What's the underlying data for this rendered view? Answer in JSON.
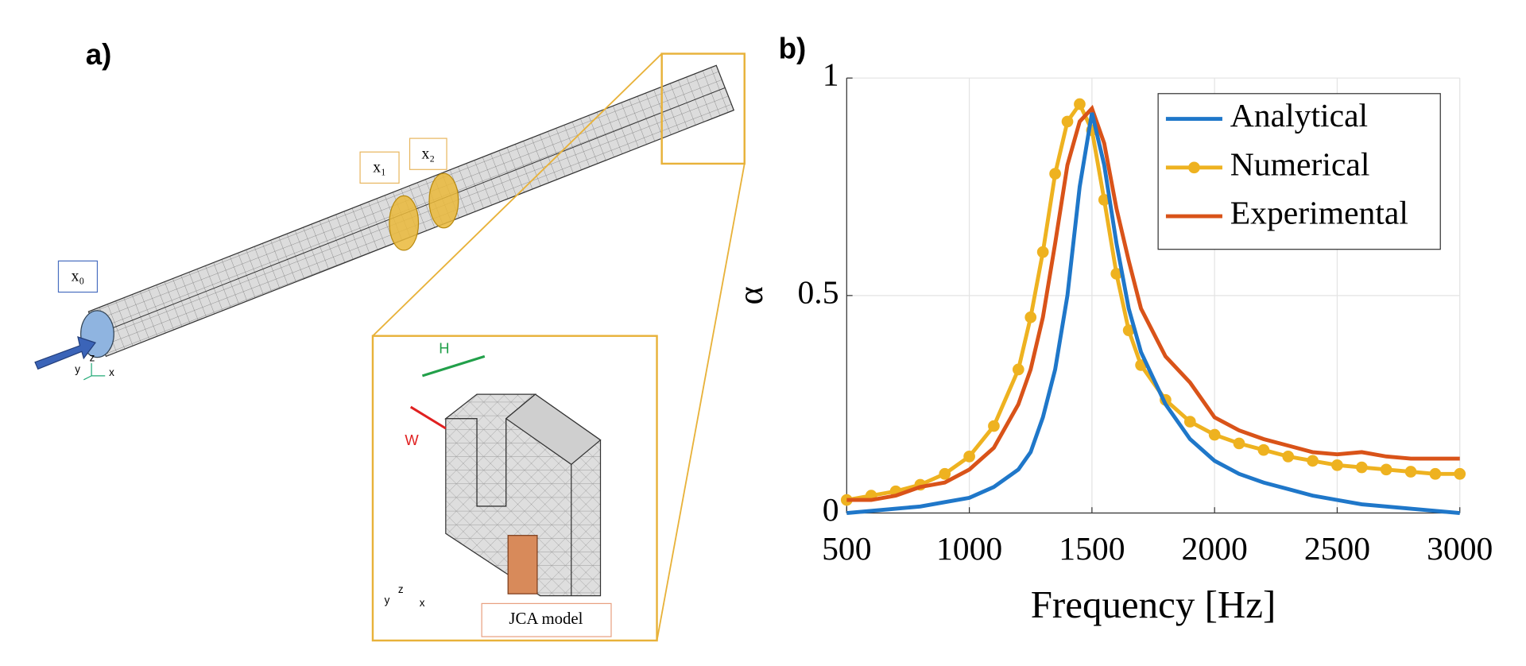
{
  "panels": {
    "a": "a)",
    "b": "b)"
  },
  "diagram": {
    "inlet_label": "x₀",
    "mic1_label": "x₁",
    "mic2_label": "x₂",
    "height_label": "H",
    "width_label": "W",
    "model_label": "JCA model",
    "triad_main": {
      "y": "y",
      "z": "z",
      "x": "x"
    },
    "triad_inset": {
      "y": "y",
      "z": "z",
      "x": "x"
    }
  },
  "chart_data": {
    "type": "line",
    "xlabel": "Frequency [Hz]",
    "ylabel": "α",
    "x": [
      500,
      600,
      700,
      800,
      900,
      1000,
      1100,
      1200,
      1250,
      1300,
      1350,
      1400,
      1450,
      1500,
      1550,
      1600,
      1650,
      1700,
      1800,
      1900,
      2000,
      2100,
      2200,
      2300,
      2400,
      2500,
      2600,
      2700,
      2800,
      2900,
      3000
    ],
    "series": [
      {
        "name": "Analytical",
        "color": "#1f77c9",
        "marker": false,
        "values": [
          0,
          0.005,
          0.01,
          0.015,
          0.025,
          0.035,
          0.06,
          0.1,
          0.14,
          0.22,
          0.33,
          0.5,
          0.75,
          0.92,
          0.8,
          0.62,
          0.47,
          0.37,
          0.25,
          0.17,
          0.12,
          0.09,
          0.07,
          0.055,
          0.04,
          0.03,
          0.02,
          0.015,
          0.01,
          0.005,
          0
        ]
      },
      {
        "name": "Numerical",
        "color": "#eeb220",
        "marker": true,
        "values": [
          0.03,
          0.04,
          0.05,
          0.065,
          0.09,
          0.13,
          0.2,
          0.33,
          0.45,
          0.6,
          0.78,
          0.9,
          0.94,
          0.88,
          0.72,
          0.55,
          0.42,
          0.34,
          0.26,
          0.21,
          0.18,
          0.16,
          0.145,
          0.13,
          0.12,
          0.11,
          0.105,
          0.1,
          0.095,
          0.09,
          0.09
        ]
      },
      {
        "name": "Experimental",
        "color": "#d95319",
        "marker": false,
        "values": [
          0.03,
          0.03,
          0.04,
          0.06,
          0.07,
          0.1,
          0.15,
          0.25,
          0.33,
          0.45,
          0.62,
          0.8,
          0.9,
          0.93,
          0.85,
          0.7,
          0.58,
          0.47,
          0.36,
          0.3,
          0.22,
          0.19,
          0.17,
          0.155,
          0.14,
          0.135,
          0.14,
          0.13,
          0.125,
          0.125,
          0.125
        ]
      }
    ],
    "xlim": [
      500,
      3000
    ],
    "ylim": [
      0,
      1
    ],
    "xticks": [
      500,
      1000,
      1500,
      2000,
      2500,
      3000
    ],
    "yticks": [
      0,
      0.5,
      1
    ],
    "grid": true,
    "legend": "upper-right"
  }
}
